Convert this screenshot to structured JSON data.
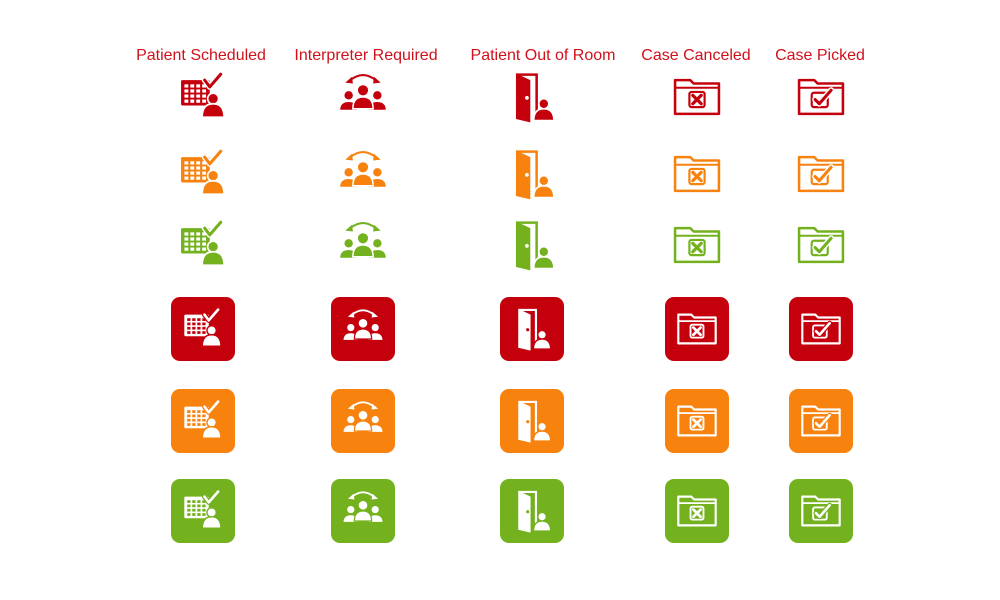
{
  "palette": {
    "red": "#c4000c",
    "orange": "#f7820e",
    "green": "#73b21e",
    "title_color": "#d0111b",
    "background": "#ffffff"
  },
  "columns": [
    {
      "title": "Patient Scheduled",
      "icon": "calendar-patient-icon"
    },
    {
      "title": "Interpreter Required",
      "icon": "interpreter-group-icon"
    },
    {
      "title": "Patient Out of Room",
      "icon": "open-door-patient-icon"
    },
    {
      "title": "Case Canceled",
      "icon": "folder-x-icon"
    },
    {
      "title": "Case Picked",
      "icon": "folder-check-icon"
    }
  ],
  "rows": [
    {
      "style": "outline",
      "color": "red"
    },
    {
      "style": "outline",
      "color": "orange"
    },
    {
      "style": "outline",
      "color": "green"
    },
    {
      "style": "tile",
      "color": "red"
    },
    {
      "style": "tile",
      "color": "orange"
    },
    {
      "style": "tile",
      "color": "green"
    }
  ]
}
